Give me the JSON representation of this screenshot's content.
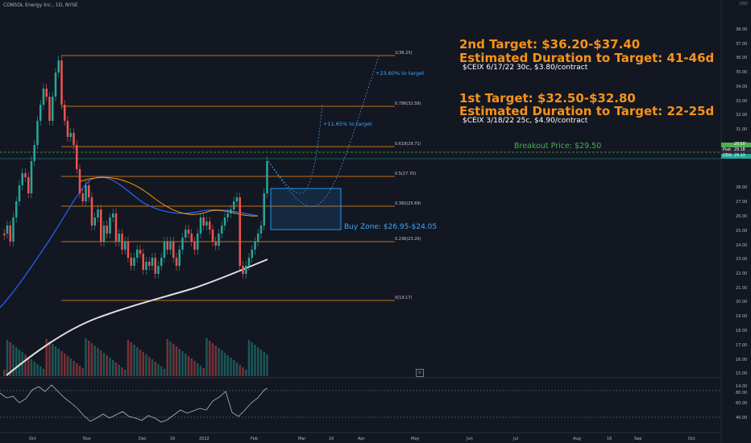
{
  "ticker": "CONSOL Energy Inc., 1D, NYSE",
  "currency": "USD",
  "targets": {
    "second_title": "2nd Target: $36.20-$37.40",
    "second_duration": "Estimated Duration to Target: 41-46d",
    "second_option": "$CEIX 6/17/22 30c, $3.80/contract",
    "first_title": "1st Target: $32.50-$32.80",
    "first_duration": "Estimated Duration to Target: 22-25d",
    "first_option": "$CEIX 3/18/22 25c, $4.90/contract"
  },
  "notes": {
    "pct_high": "+23.60% to target",
    "pct_low": "+11.65% to target",
    "breakout": "Breakout Price: $29.50",
    "buyzone": "Buy Zone: $26.95-$24.05"
  },
  "fib_labels": [
    "1(36.23)",
    "0.786(32.58)",
    "0.618(29.71)",
    "0.5(27.70)",
    "0.382(25.69)",
    "0.236(23.20)",
    "0(19.17)"
  ],
  "y_ticks": [
    "38.00",
    "37.00",
    "36.00",
    "35.00",
    "34.00",
    "33.00",
    "32.00",
    "31.00",
    "30.00",
    "28.00",
    "27.00",
    "26.00",
    "25.00",
    "24.00",
    "23.00",
    "22.00",
    "21.00",
    "20.00",
    "19.00",
    "18.00",
    "17.00",
    "16.00",
    "15.00",
    "14.00"
  ],
  "osc_ticks": [
    "80.00",
    "60.00",
    "40.00"
  ],
  "x_ticks": [
    "Oct",
    "Nov",
    "Dec",
    "16",
    "2022",
    "Feb",
    "Mar",
    "16",
    "Apr",
    "May",
    "Jun",
    "Jul",
    "Aug",
    "16",
    "Sep",
    "Oct"
  ],
  "price_tags": {
    "breakout": "29.50",
    "post_label": "Post",
    "post_value": "29.18",
    "ceix_label": "CEIX",
    "ceix_value": "29.13"
  },
  "colors": {
    "background": "#131722",
    "fib_line": "#f7931a",
    "target_text": "#f7931a",
    "up_candle": "#26a69a",
    "down_candle": "#ef5350",
    "ma_blue": "#2962ff",
    "ma_orange": "#ff9800",
    "ma_white": "#e0e0e0",
    "buyzone": "#2196f3",
    "breakout": "#4caf50"
  },
  "icon_names": [
    "settings-icon"
  ]
}
